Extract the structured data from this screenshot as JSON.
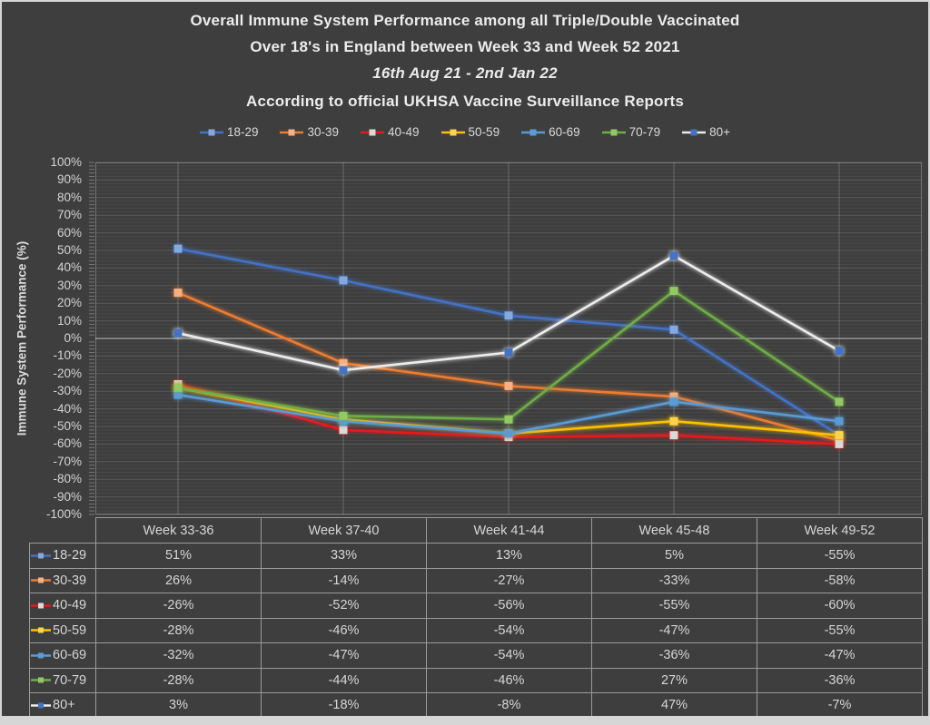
{
  "title": {
    "line1": "Overall Immune System Performance among all Triple/Double Vaccinated",
    "line2": "Over 18's in England between Week 33 and Week 52 2021",
    "line3": "16th Aug 21 - 2nd Jan 22",
    "line4": "According to official UKHSA Vaccine Surveillance Reports"
  },
  "chart_data": {
    "type": "line",
    "ylabel": "Immune System Performance (%)",
    "ylim": [
      -100,
      100
    ],
    "ytick_step": 10,
    "minor_grid_step": 2,
    "grid": "on",
    "legend_position": "top",
    "value_suffix": "%",
    "categories": [
      "Week 33-36",
      "Week 37-40",
      "Week 41-44",
      "Week 45-48",
      "Week 49-52"
    ],
    "series": [
      {
        "name": "18-29",
        "line_color": "#4472C4",
        "marker_color": "#84A9DE",
        "values": [
          51,
          33,
          13,
          5,
          -55
        ]
      },
      {
        "name": "30-39",
        "line_color": "#ED7D31",
        "marker_color": "#F4B183",
        "values": [
          26,
          -14,
          -27,
          -33,
          -58
        ]
      },
      {
        "name": "40-49",
        "line_color": "#E8191C",
        "marker_color": "#D9D9D9",
        "values": [
          -26,
          -52,
          -56,
          -55,
          -60
        ]
      },
      {
        "name": "50-59",
        "line_color": "#FFC000",
        "marker_color": "#FFD34D",
        "values": [
          -28,
          -46,
          -54,
          -47,
          -55
        ]
      },
      {
        "name": "60-69",
        "line_color": "#5B9BD5",
        "marker_color": "#5B9BD5",
        "values": [
          -32,
          -47,
          -54,
          -36,
          -47
        ]
      },
      {
        "name": "70-79",
        "line_color": "#70AD47",
        "marker_color": "#93C964",
        "values": [
          -28,
          -44,
          -46,
          27,
          -36
        ]
      },
      {
        "name": "80+",
        "line_color": "#ECECEC",
        "marker_color": "#4472C4",
        "values": [
          3,
          -18,
          -8,
          47,
          -7
        ]
      }
    ]
  },
  "colors": {
    "background": "#3E3E3E",
    "frame_edge": "#D6D6D6",
    "text": "#D6D6D6",
    "title_text": "#ECECEC",
    "zero_line": "#A8A8A8",
    "table_border": "#9B9B9B"
  }
}
